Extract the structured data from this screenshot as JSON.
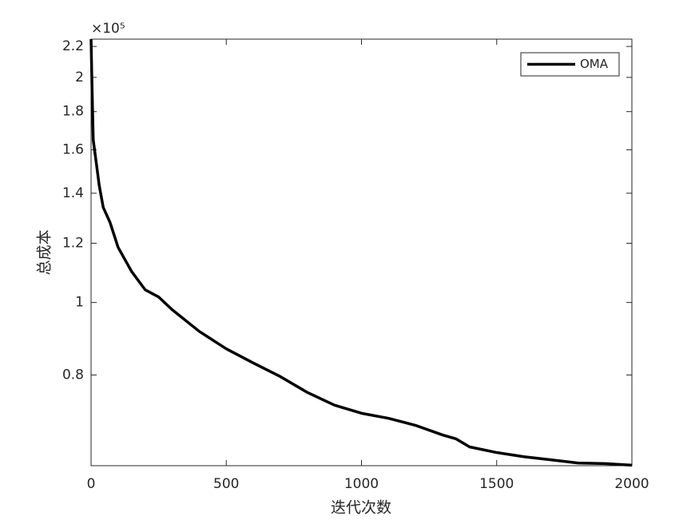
{
  "chart_data": {
    "type": "line",
    "xlabel": "迭代次数",
    "ylabel": "总成本",
    "y_multiplier": "×10⁵",
    "x": [
      0,
      3,
      8,
      20,
      30,
      45,
      70,
      100,
      150,
      200,
      250,
      300,
      400,
      500,
      600,
      700,
      800,
      900,
      1000,
      1100,
      1200,
      1300,
      1350,
      1400,
      1500,
      1600,
      1700,
      1800,
      1900,
      2000
    ],
    "series": [
      {
        "name": "OMA",
        "color": "#000000",
        "values": [
          2.25,
          1.98,
          1.65,
          1.53,
          1.435,
          1.34,
          1.28,
          1.185,
          1.1,
          1.04,
          1.017,
          0.978,
          0.915,
          0.867,
          0.83,
          0.796,
          0.758,
          0.729,
          0.711,
          0.7,
          0.685,
          0.665,
          0.657,
          0.641,
          0.63,
          0.622,
          0.616,
          0.61,
          0.609,
          0.606
        ]
      }
    ],
    "xlim": [
      0,
      2000
    ],
    "xticks": [
      0,
      500,
      1000,
      1500,
      2000
    ],
    "ylim": [
      0.605,
      2.25
    ],
    "yticks": [
      0.8,
      1,
      1.2,
      1.4,
      1.6,
      1.8,
      2,
      2.2
    ],
    "ylog": true,
    "grid": false,
    "legend": "northeast"
  }
}
